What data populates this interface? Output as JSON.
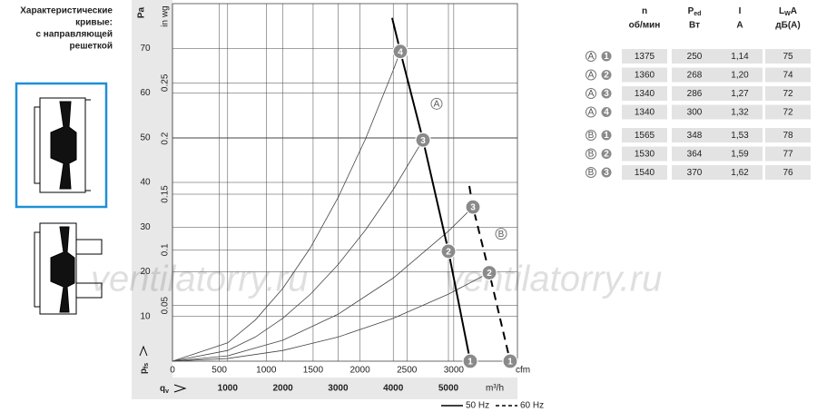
{
  "heading": [
    "Характеристические",
    "кривые:",
    "с направляющей",
    "решеткой"
  ],
  "chart_data": {
    "type": "line",
    "y_label": "p",
    "y_label_sub": "fs",
    "y_unit": "Pa",
    "y2_unit": "in wg",
    "x_label": "q",
    "x_label_sub": "v",
    "x_unit": "m³/h",
    "x2_unit": "cfm",
    "xlim": [
      0,
      6250
    ],
    "xticks": [
      1000,
      2000,
      3000,
      4000,
      5000
    ],
    "x2lim": [
      0,
      3679
    ],
    "x2ticks": [
      0,
      500,
      1000,
      1500,
      2000,
      2500,
      3000
    ],
    "ylim": [
      0,
      80
    ],
    "yticks": [
      10,
      20,
      30,
      40,
      50,
      60,
      70
    ],
    "y2lim": [
      0,
      0.3212
    ],
    "y2ticks": [
      0.05,
      0.1,
      0.15,
      0.2,
      0.25
    ],
    "grid": true,
    "series": [
      {
        "name": "50 Hz",
        "color": "#000000",
        "dashed": false,
        "x": [
          3980,
          4128,
          4539,
          5000,
          5395
        ],
        "values": [
          76.8,
          69.3,
          49.5,
          24.6,
          0
        ],
        "point_labels": [
          null,
          "4",
          "3",
          "2",
          "1"
        ]
      },
      {
        "name": "60 Hz",
        "color": "#000000",
        "dashed": true,
        "x": [
          5378,
          5444,
          5740,
          6118
        ],
        "values": [
          39.2,
          34.5,
          19.8,
          0
        ],
        "point_labels": [
          null,
          "3",
          "2",
          "1"
        ]
      }
    ],
    "curves": [
      {
        "x": [
          0,
          1000,
          1500,
          2000,
          2500,
          3000,
          3500,
          4000,
          4128
        ],
        "values": [
          0,
          4.1,
          9.2,
          16.3,
          25.4,
          36.6,
          49.8,
          65.1,
          69.3
        ]
      },
      {
        "x": [
          0,
          1000,
          1500,
          2000,
          2500,
          3000,
          3500,
          4000,
          4539
        ],
        "values": [
          0,
          2.4,
          5.4,
          9.6,
          15.0,
          21.6,
          29.4,
          38.4,
          49.5
        ]
      },
      {
        "x": [
          0,
          1000,
          2000,
          3000,
          4000,
          5000,
          5444
        ],
        "values": [
          0,
          1.2,
          4.7,
          10.5,
          18.6,
          29.1,
          34.5
        ]
      },
      {
        "x": [
          0,
          1000,
          2000,
          3000,
          4000,
          5000,
          5740
        ],
        "values": [
          0,
          0.6,
          2.4,
          5.4,
          9.6,
          15.0,
          19.8
        ]
      }
    ],
    "annotations": [
      {
        "text": "A",
        "x": 4786,
        "y": 57.6
      },
      {
        "text": "B",
        "x": 5954,
        "y": 28.5
      }
    ],
    "watermark": "ventilatorry.ru"
  },
  "table": {
    "headers": [
      {
        "text": "n",
        "unit": "об/мин"
      },
      {
        "text": "P",
        "sub": "ed",
        "unit": "Вт"
      },
      {
        "text": "I",
        "unit": "A"
      },
      {
        "text": "L",
        "sub": "W",
        "after": "A",
        "unit": "дБ(A)"
      }
    ],
    "rows": [
      {
        "curve": "A",
        "point": "1",
        "cells": [
          "1375",
          "250",
          "1,14",
          "75"
        ]
      },
      {
        "curve": "A",
        "point": "2",
        "cells": [
          "1360",
          "268",
          "1,20",
          "74"
        ]
      },
      {
        "curve": "A",
        "point": "3",
        "cells": [
          "1340",
          "286",
          "1,27",
          "72"
        ]
      },
      {
        "curve": "A",
        "point": "4",
        "cells": [
          "1340",
          "300",
          "1,32",
          "72"
        ]
      },
      {
        "curve": "B",
        "point": "1",
        "cells": [
          "1565",
          "348",
          "1,53",
          "78"
        ]
      },
      {
        "curve": "B",
        "point": "2",
        "cells": [
          "1530",
          "364",
          "1,59",
          "77"
        ]
      },
      {
        "curve": "B",
        "point": "3",
        "cells": [
          "1540",
          "370",
          "1,62",
          "76"
        ]
      }
    ]
  }
}
